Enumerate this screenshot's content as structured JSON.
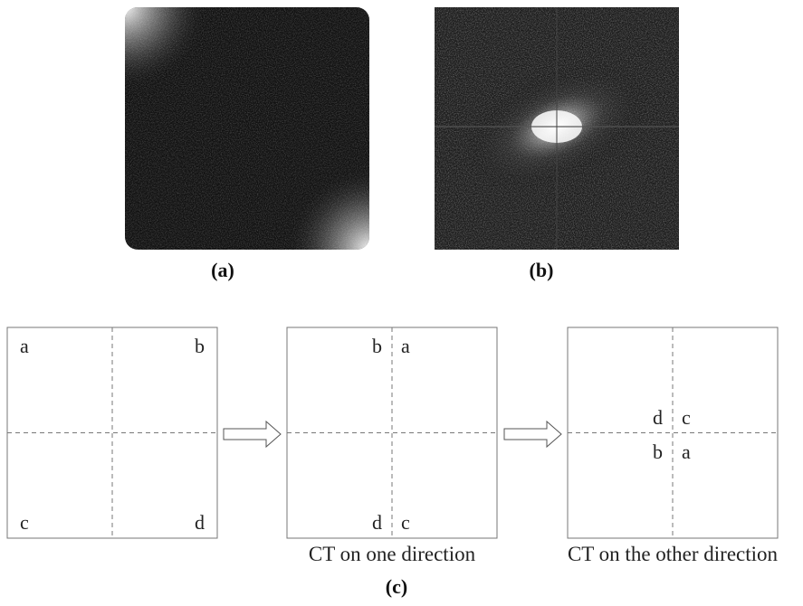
{
  "panels": [
    {
      "label": "(a)"
    },
    {
      "label": "(b)"
    }
  ],
  "diagram": {
    "boxes": [
      {
        "letters": [
          "a",
          "b",
          "c",
          "d"
        ]
      },
      {
        "letters": [
          "b",
          "a",
          "d",
          "c"
        ],
        "caption": "CT on one direction"
      },
      {
        "letters": [
          "d",
          "c",
          "b",
          "a"
        ],
        "caption": "CT on the other direction"
      }
    ],
    "label": "(c)"
  }
}
